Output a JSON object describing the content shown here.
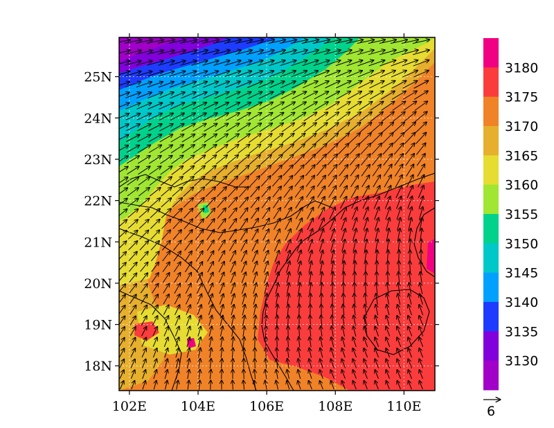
{
  "chart_data": {
    "type": "heatmap",
    "title": "",
    "xlabel": "",
    "ylabel": "",
    "x_range": [
      101.7,
      110.9
    ],
    "y_range": [
      17.4,
      25.95
    ],
    "x_ticks": [
      {
        "value": 102,
        "label": "102E"
      },
      {
        "value": 104,
        "label": "104E"
      },
      {
        "value": 106,
        "label": "106E"
      },
      {
        "value": 108,
        "label": "108E"
      },
      {
        "value": 110,
        "label": "110E"
      }
    ],
    "y_ticks": [
      {
        "value": 18,
        "label": "18N"
      },
      {
        "value": 19,
        "label": "19N"
      },
      {
        "value": 20,
        "label": "20N"
      },
      {
        "value": 21,
        "label": "21N"
      },
      {
        "value": 22,
        "label": "22N"
      },
      {
        "value": 23,
        "label": "23N"
      },
      {
        "value": 24,
        "label": "24N"
      },
      {
        "value": 25,
        "label": "25N"
      }
    ],
    "grid": "dotted",
    "contour_levels": [
      {
        "lower": null,
        "upper": 3130,
        "color": "#a000c8"
      },
      {
        "lower": 3130,
        "upper": 3135,
        "color": "#8200dc"
      },
      {
        "lower": 3135,
        "upper": 3140,
        "color": "#1e3cff"
      },
      {
        "lower": 3140,
        "upper": 3145,
        "color": "#00a0ff"
      },
      {
        "lower": 3145,
        "upper": 3150,
        "color": "#00c8c8"
      },
      {
        "lower": 3150,
        "upper": 3155,
        "color": "#00d28c"
      },
      {
        "lower": 3155,
        "upper": 3160,
        "color": "#a0e632"
      },
      {
        "lower": 3160,
        "upper": 3165,
        "color": "#e6dc32"
      },
      {
        "lower": 3165,
        "upper": 3170,
        "color": "#e6af2d"
      },
      {
        "lower": 3170,
        "upper": 3175,
        "color": "#f08228"
      },
      {
        "lower": 3175,
        "upper": 3180,
        "color": "#fa3c3c"
      },
      {
        "lower": 3180,
        "upper": null,
        "color": "#f00082"
      }
    ],
    "colorbar_tick_labels": [
      "3180",
      "3175",
      "3170",
      "3165",
      "3160",
      "3155",
      "3150",
      "3145",
      "3140",
      "3135",
      "3130"
    ],
    "vector_reference": {
      "label": "6",
      "magnitude": 6
    }
  }
}
